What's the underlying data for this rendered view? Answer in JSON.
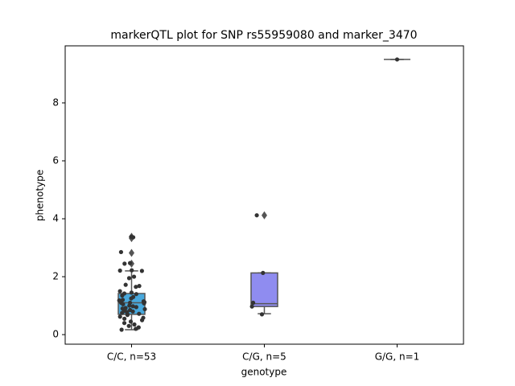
{
  "chart_data": {
    "type": "box",
    "title": "markerQTL plot for SNP rs55959080 and marker_3470",
    "x_label": "genotype",
    "y_label": "phenotype",
    "categories": [
      "C/C, n=53",
      "C/G, n=5",
      "G/G, n=1"
    ],
    "ylim": [
      -0.33,
      9.97
    ],
    "yticks": [
      0,
      2,
      4,
      6,
      8
    ],
    "boxes": [
      {
        "color": "#48a8dc",
        "whislo": 0.17,
        "q1": 0.7,
        "median": 1.1,
        "q3": 1.42,
        "whishi": 2.2,
        "fliers": [
          3.38,
          3.33,
          2.82,
          2.45
        ],
        "points": [
          3.38,
          3.36,
          2.85,
          2.45,
          2.47,
          2.22,
          2.21,
          2.2,
          2.0,
          1.95,
          1.72,
          1.68,
          1.65,
          1.5,
          1.45,
          1.42,
          1.4,
          1.35,
          1.3,
          1.25,
          1.2,
          1.18,
          1.15,
          1.12,
          1.1,
          1.1,
          1.08,
          1.05,
          1.0,
          0.98,
          0.95,
          0.92,
          0.9,
          0.88,
          0.85,
          0.82,
          0.8,
          0.78,
          0.75,
          0.72,
          0.7,
          0.68,
          0.62,
          0.58,
          0.55,
          0.5,
          0.45,
          0.4,
          0.35,
          0.3,
          0.25,
          0.2,
          0.17
        ]
      },
      {
        "color": "#8f8cf0",
        "whislo": 0.72,
        "q1": 0.97,
        "median": 1.07,
        "q3": 2.13,
        "whishi": 2.13,
        "fliers": [
          4.12
        ],
        "points": [
          4.12,
          2.13,
          1.1,
          0.97,
          0.7
        ]
      },
      {
        "color": "#9b7fe6",
        "whislo": 9.5,
        "q1": 9.5,
        "median": 9.5,
        "q3": 9.5,
        "whishi": 9.5,
        "fliers": [],
        "points": [
          9.5
        ]
      }
    ]
  }
}
